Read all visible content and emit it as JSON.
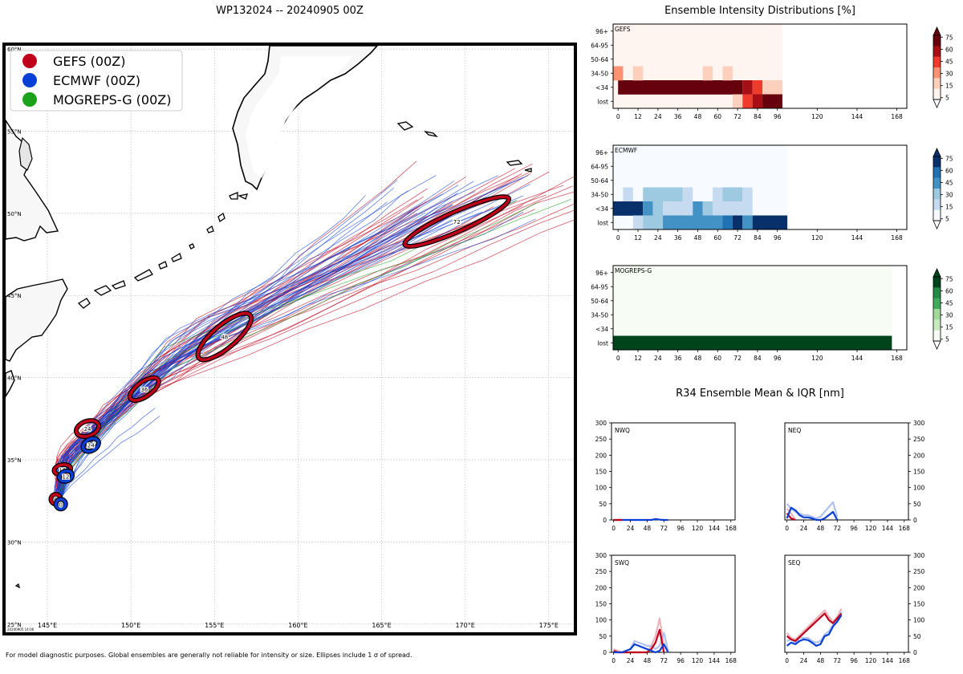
{
  "main_title": "WP132024 -- 20240905 00Z",
  "heatmap_section_title": "Ensemble Intensity Distributions [%]",
  "r34_section_title": "R34 Ensemble Mean & IQR [nm]",
  "footnote": "For model diagnostic purposes. Global ensembles are generally not reliable for intensity or size. Ellipses include 1 σ of spread.",
  "map_stamp": "20240905 14:06",
  "colors": {
    "gefs": "#c0001a",
    "ecmwf": "#0a3fd6",
    "mogreps": "#1aa31a",
    "land": "#f7f7f7",
    "land_shade": "#d8d8d8"
  },
  "chart_data": [
    {
      "type": "scatter",
      "name": "track-map",
      "title": "WP132024 -- 20240905 00Z",
      "xlim": [
        142.5,
        176.5
      ],
      "ylim": [
        24.5,
        60.2
      ],
      "xticks": [
        145,
        150,
        155,
        160,
        165,
        170,
        175
      ],
      "xticklabels": [
        "145°E",
        "150°E",
        "155°E",
        "160°E",
        "165°E",
        "170°E",
        "175°E"
      ],
      "yticks": [
        25,
        30,
        35,
        40,
        45,
        50,
        55,
        60
      ],
      "yticklabels": [
        "25°N",
        "30°N",
        "35°N",
        "40°N",
        "45°N",
        "50°N",
        "55°N",
        "60°N"
      ],
      "legend": [
        {
          "label": "GEFS (00Z)",
          "color": "#c0001a"
        },
        {
          "label": "ECMWF (00Z)",
          "color": "#0a3fd6"
        },
        {
          "label": "MOGREPS-G (00Z)",
          "color": "#1aa31a"
        }
      ],
      "gefs_mean": [
        {
          "tau": 0,
          "lon": 145.5,
          "lat": 32.6
        },
        {
          "tau": 12,
          "lon": 145.9,
          "lat": 34.4
        },
        {
          "tau": 24,
          "lon": 147.4,
          "lat": 36.9
        },
        {
          "tau": 36,
          "lon": 150.8,
          "lat": 39.3
        },
        {
          "tau": 48,
          "lon": 155.6,
          "lat": 42.5
        },
        {
          "tau": 72,
          "lon": 169.5,
          "lat": 49.5
        }
      ],
      "ecmwf_mean": [
        {
          "tau": 0,
          "lon": 145.8,
          "lat": 32.3
        },
        {
          "tau": 12,
          "lon": 146.1,
          "lat": 34.0
        },
        {
          "tau": 24,
          "lon": 147.6,
          "lat": 35.9
        }
      ],
      "gefs_ellipses": [
        {
          "tau": 0,
          "lon": 145.5,
          "lat": 32.6,
          "rx_deg": 0.25,
          "ry_deg": 0.25,
          "rot": 0
        },
        {
          "tau": 12,
          "lon": 145.9,
          "lat": 34.4,
          "rx_deg": 0.5,
          "ry_deg": 0.3,
          "rot": -10
        },
        {
          "tau": 24,
          "lon": 147.4,
          "lat": 36.9,
          "rx_deg": 0.7,
          "ry_deg": 0.45,
          "rot": -20
        },
        {
          "tau": 36,
          "lon": 150.8,
          "lat": 39.3,
          "rx_deg": 1.0,
          "ry_deg": 0.45,
          "rot": -35
        },
        {
          "tau": 48,
          "lon": 155.6,
          "lat": 42.5,
          "rx_deg": 2.0,
          "ry_deg": 0.7,
          "rot": -40
        },
        {
          "tau": 72,
          "lon": 169.5,
          "lat": 49.5,
          "rx_deg": 3.4,
          "ry_deg": 0.6,
          "rot": -24
        }
      ],
      "ecmwf_ellipses": [
        {
          "tau": 0,
          "lon": 145.8,
          "lat": 32.3,
          "rx_deg": 0.25,
          "ry_deg": 0.25,
          "rot": 0
        },
        {
          "tau": 12,
          "lon": 146.1,
          "lat": 34.0,
          "rx_deg": 0.4,
          "ry_deg": 0.3,
          "rot": -20
        },
        {
          "tau": 24,
          "lon": 147.6,
          "lat": 35.9,
          "rx_deg": 0.5,
          "ry_deg": 0.35,
          "rot": -30
        }
      ]
    },
    {
      "type": "heatmap",
      "name": "GEFS",
      "cmap": "reds",
      "rows": [
        "96+",
        "64-95",
        "50-64",
        "34-50",
        "<34",
        "lost"
      ],
      "xticks": [
        0,
        12,
        24,
        36,
        48,
        60,
        72,
        84,
        96,
        120,
        144,
        168
      ],
      "xlim": [
        -3,
        174
      ],
      "data_end_tau": 99,
      "cells": [
        {
          "row": "<34",
          "from": 0,
          "to": 75,
          "level": 5
        },
        {
          "row": "<34",
          "from": 75,
          "to": 81,
          "level": 4
        },
        {
          "row": "<34",
          "from": 81,
          "to": 87,
          "level": 3
        },
        {
          "row": "<34",
          "from": 87,
          "to": 99,
          "level": 1
        },
        {
          "row": "34-50",
          "from": -3,
          "to": 3,
          "level": 2
        },
        {
          "row": "34-50",
          "from": 9,
          "to": 15,
          "level": 1
        },
        {
          "row": "34-50",
          "from": 51,
          "to": 57,
          "level": 1
        },
        {
          "row": "34-50",
          "from": 63,
          "to": 69,
          "level": 1
        },
        {
          "row": "lost",
          "from": 69,
          "to": 75,
          "level": 1
        },
        {
          "row": "lost",
          "from": 75,
          "to": 81,
          "level": 3
        },
        {
          "row": "lost",
          "from": 81,
          "to": 87,
          "level": 4
        },
        {
          "row": "lost",
          "from": 87,
          "to": 99,
          "level": 5
        }
      ],
      "colorbar_ticks": [
        75,
        60,
        45,
        30,
        15,
        5
      ]
    },
    {
      "type": "heatmap",
      "name": "ECMWF",
      "cmap": "blues",
      "rows": [
        "96+",
        "64-95",
        "50-64",
        "34-50",
        "<34",
        "lost"
      ],
      "xticks": [
        0,
        12,
        24,
        36,
        48,
        60,
        72,
        84,
        96,
        120,
        144,
        168
      ],
      "xlim": [
        -3,
        174
      ],
      "data_end_tau": 102,
      "cells": [
        {
          "row": "34-50",
          "from": 3,
          "to": 9,
          "level": 1
        },
        {
          "row": "34-50",
          "from": 15,
          "to": 39,
          "level": 2
        },
        {
          "row": "34-50",
          "from": 39,
          "to": 45,
          "level": 1
        },
        {
          "row": "34-50",
          "from": 57,
          "to": 63,
          "level": 1
        },
        {
          "row": "34-50",
          "from": 63,
          "to": 75,
          "level": 2
        },
        {
          "row": "34-50",
          "from": 75,
          "to": 81,
          "level": 1
        },
        {
          "row": "<34",
          "from": -3,
          "to": 15,
          "level": 5
        },
        {
          "row": "<34",
          "from": 15,
          "to": 21,
          "level": 3
        },
        {
          "row": "<34",
          "from": 21,
          "to": 27,
          "level": 2
        },
        {
          "row": "<34",
          "from": 27,
          "to": 45,
          "level": 1
        },
        {
          "row": "<34",
          "from": 45,
          "to": 51,
          "level": 3
        },
        {
          "row": "<34",
          "from": 51,
          "to": 57,
          "level": 2
        },
        {
          "row": "<34",
          "from": 57,
          "to": 81,
          "level": 1
        },
        {
          "row": "lost",
          "from": 9,
          "to": 15,
          "level": 1
        },
        {
          "row": "lost",
          "from": 15,
          "to": 27,
          "level": 2
        },
        {
          "row": "lost",
          "from": 27,
          "to": 63,
          "level": 3
        },
        {
          "row": "lost",
          "from": 63,
          "to": 69,
          "level": 4
        },
        {
          "row": "lost",
          "from": 69,
          "to": 75,
          "level": 5
        },
        {
          "row": "lost",
          "from": 75,
          "to": 81,
          "level": 3
        },
        {
          "row": "lost",
          "from": 81,
          "to": 102,
          "level": 5
        }
      ],
      "colorbar_ticks": [
        75,
        60,
        45,
        30,
        15,
        5
      ]
    },
    {
      "type": "heatmap",
      "name": "MOGREPS-G",
      "cmap": "greens",
      "rows": [
        "96+",
        "64-95",
        "50-64",
        "34-50",
        "<34",
        "lost"
      ],
      "xticks": [
        0,
        12,
        24,
        36,
        48,
        60,
        72,
        84,
        96,
        120,
        144,
        168
      ],
      "xlim": [
        -3,
        174
      ],
      "data_end_tau": 165,
      "cells": [
        {
          "row": "lost",
          "from": -3,
          "to": 165,
          "level": 5
        }
      ],
      "colorbar_ticks": [
        75,
        60,
        45,
        30,
        15,
        5
      ]
    },
    {
      "type": "line",
      "name": "NWQ",
      "xlim": [
        -3,
        174
      ],
      "ylim": [
        0,
        300
      ],
      "xticks": [
        0,
        24,
        48,
        72,
        96,
        120,
        144,
        168
      ],
      "yticks": [
        0,
        50,
        100,
        150,
        200,
        250,
        300
      ],
      "yaxis_side": "left",
      "series": [
        {
          "name": "ECMWF mean",
          "color": "#0a3fd6",
          "x": [
            0,
            6,
            12,
            18,
            24,
            30,
            36,
            42,
            48,
            54,
            60,
            66,
            72,
            78
          ],
          "y": [
            0,
            0,
            0,
            0,
            0,
            0,
            0,
            0,
            0,
            0,
            3,
            1,
            0,
            0
          ]
        },
        {
          "name": "GEFS mean",
          "color": "#c0001a",
          "x": [
            0,
            6,
            12
          ],
          "y": [
            0,
            0,
            0
          ]
        }
      ]
    },
    {
      "type": "line",
      "name": "NEQ",
      "xlim": [
        -3,
        174
      ],
      "ylim": [
        0,
        300
      ],
      "xticks": [
        0,
        24,
        48,
        72,
        96,
        120,
        144,
        168
      ],
      "yticks": [
        0,
        50,
        100,
        150,
        200,
        250,
        300
      ],
      "yaxis_side": "right",
      "series": [
        {
          "name": "GEFS IQR",
          "color": "#e8a0ab",
          "x": [
            0,
            6,
            12
          ],
          "y": [
            35,
            20,
            0
          ]
        },
        {
          "name": "ECMWF IQR",
          "color": "#9db3ec",
          "x": [
            0,
            6,
            12,
            18,
            24,
            30,
            36,
            42,
            48,
            54,
            60,
            66,
            72
          ],
          "y": [
            50,
            35,
            25,
            20,
            15,
            15,
            10,
            5,
            10,
            25,
            40,
            55,
            10
          ]
        },
        {
          "name": "GEFS mean",
          "color": "#c0001a",
          "x": [
            0,
            6,
            12
          ],
          "y": [
            20,
            5,
            0
          ]
        },
        {
          "name": "ECMWF mean",
          "color": "#0a3fd6",
          "x": [
            0,
            6,
            12,
            18,
            24,
            30,
            36,
            42,
            48,
            54,
            60,
            66,
            72
          ],
          "y": [
            5,
            38,
            30,
            15,
            8,
            8,
            5,
            0,
            0,
            5,
            15,
            25,
            0
          ]
        }
      ]
    },
    {
      "type": "line",
      "name": "SWQ",
      "xlim": [
        -3,
        174
      ],
      "ylim": [
        0,
        300
      ],
      "xticks": [
        0,
        24,
        48,
        72,
        96,
        120,
        144,
        168
      ],
      "yticks": [
        0,
        50,
        100,
        150,
        200,
        250,
        300
      ],
      "yaxis_side": "left",
      "series": [
        {
          "name": "GEFS IQR",
          "color": "#e8a0ab",
          "x": [
            0,
            6,
            12,
            48,
            54,
            60,
            66,
            72
          ],
          "y": [
            10,
            5,
            0,
            0,
            20,
            50,
            105,
            20
          ]
        },
        {
          "name": "ECMWF IQR",
          "color": "#9db3ec",
          "x": [
            0,
            6,
            12,
            18,
            24,
            30,
            36,
            42,
            48,
            54,
            60,
            66,
            72,
            78
          ],
          "y": [
            5,
            0,
            0,
            5,
            10,
            35,
            30,
            25,
            20,
            20,
            10,
            20,
            60,
            5
          ]
        },
        {
          "name": "GEFS mean",
          "color": "#c0001a",
          "x": [
            0,
            6,
            12,
            48,
            54,
            60,
            66,
            72
          ],
          "y": [
            5,
            0,
            0,
            0,
            10,
            30,
            70,
            0
          ]
        },
        {
          "name": "ECMWF mean",
          "color": "#0a3fd6",
          "x": [
            0,
            6,
            12,
            18,
            24,
            30,
            36,
            42,
            48,
            54,
            60,
            66,
            72,
            78
          ],
          "y": [
            0,
            0,
            0,
            5,
            10,
            25,
            20,
            15,
            10,
            5,
            0,
            5,
            25,
            0
          ]
        }
      ]
    },
    {
      "type": "line",
      "name": "SEQ",
      "xlim": [
        -3,
        174
      ],
      "ylim": [
        0,
        300
      ],
      "xticks": [
        0,
        24,
        48,
        72,
        96,
        120,
        144,
        168
      ],
      "yticks": [
        0,
        50,
        100,
        150,
        200,
        250,
        300
      ],
      "yaxis_side": "right",
      "series": [
        {
          "name": "GEFS IQR",
          "color": "#e8a0ab",
          "x": [
            0,
            6,
            12,
            54,
            60,
            66,
            72,
            78
          ],
          "y": [
            60,
            45,
            40,
            130,
            110,
            95,
            110,
            135
          ]
        },
        {
          "name": "ECMWF IQR",
          "color": "#9db3ec",
          "x": [
            0,
            6,
            12,
            18,
            24,
            30,
            36,
            42,
            48,
            54,
            60,
            66,
            72,
            78
          ],
          "y": [
            35,
            40,
            30,
            45,
            45,
            45,
            35,
            30,
            35,
            55,
            65,
            85,
            100,
            125
          ]
        },
        {
          "name": "GEFS mean",
          "color": "#c0001a",
          "x": [
            0,
            6,
            12,
            54,
            60,
            66,
            72,
            78
          ],
          "y": [
            50,
            40,
            35,
            120,
            100,
            90,
            105,
            120
          ]
        },
        {
          "name": "ECMWF mean",
          "color": "#0a3fd6",
          "x": [
            0,
            6,
            12,
            18,
            24,
            30,
            36,
            42,
            48,
            54,
            60,
            66,
            72,
            78
          ],
          "y": [
            20,
            30,
            25,
            35,
            40,
            38,
            30,
            20,
            25,
            50,
            55,
            80,
            95,
            115
          ]
        }
      ]
    }
  ]
}
